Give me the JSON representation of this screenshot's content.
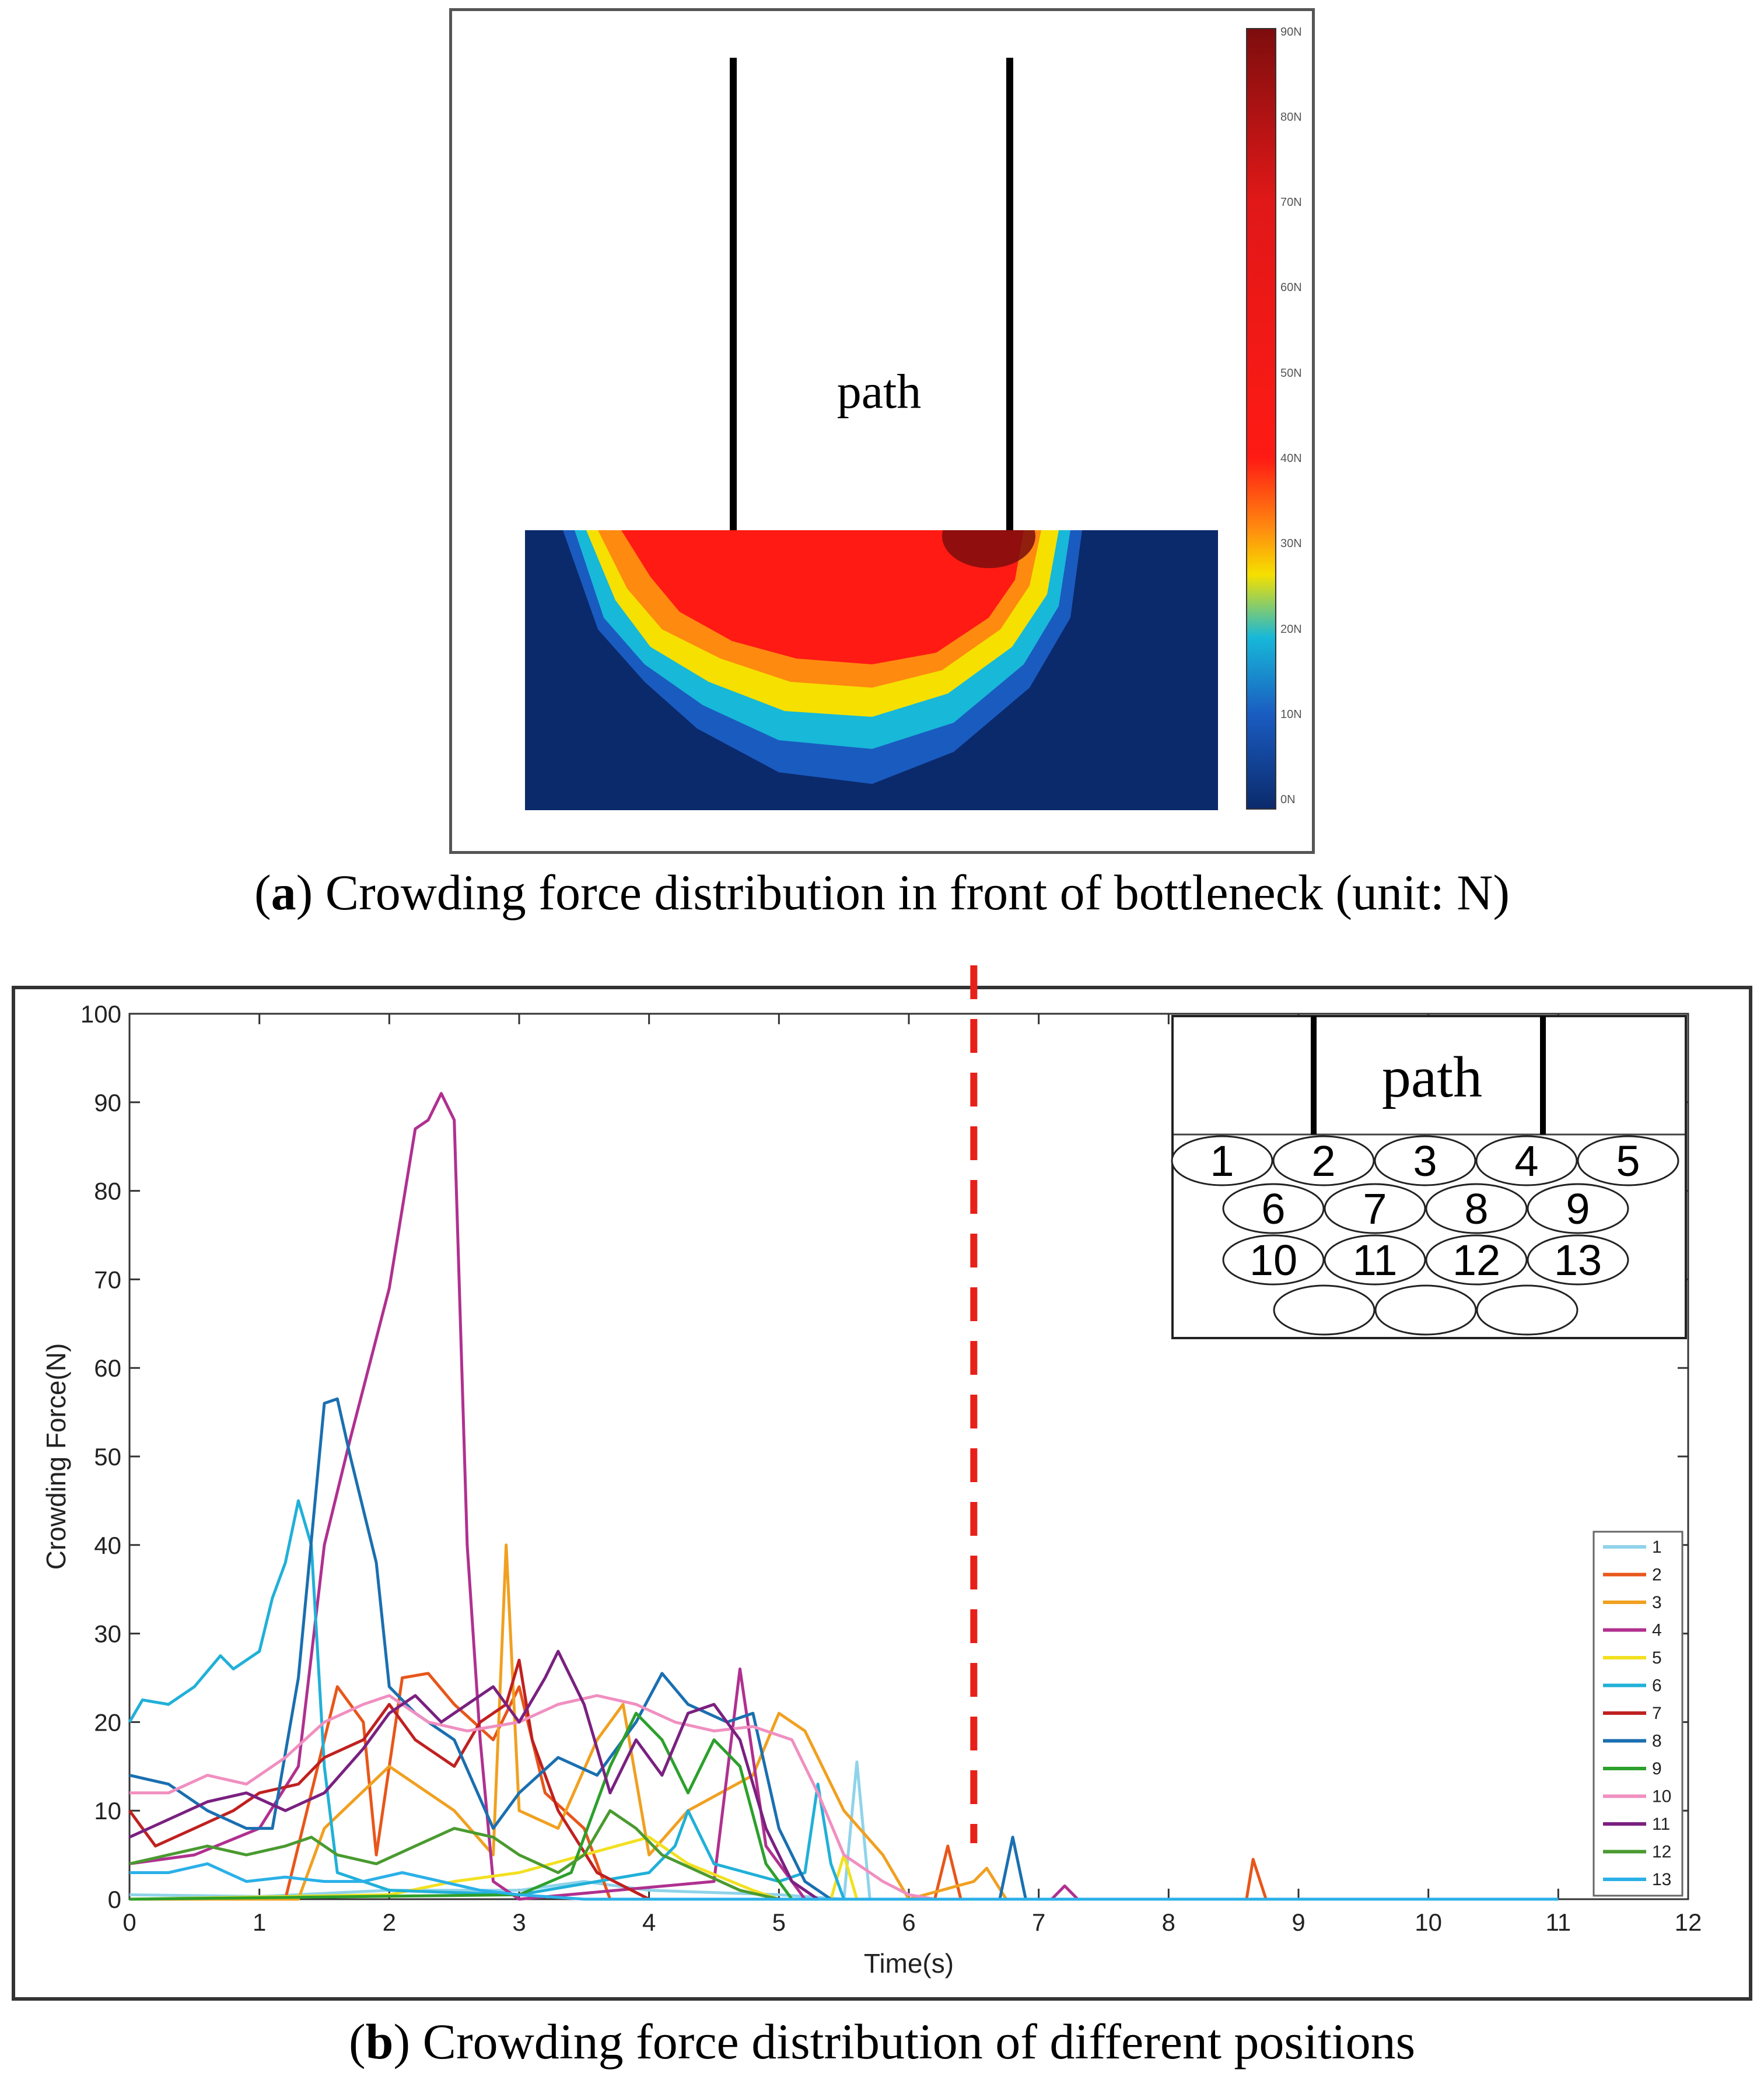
{
  "panel_a": {
    "path_label": "path",
    "caption_letter": "a",
    "caption_text": ") Crowding force distribution in front of bottleneck (unit: N)",
    "colorbar_ticks": [
      "90N",
      "80N",
      "70N",
      "60N",
      "50N",
      "40N",
      "30N",
      "20N",
      "10N",
      "0N"
    ],
    "colors": {
      "low": "#0b2a6b",
      "mid": "#18b8d8",
      "warm": "#f5e000",
      "high": "#ff1a14",
      "max": "#7d0d0d"
    }
  },
  "panel_b": {
    "caption_letter": "b",
    "caption_text": ") Crowding force distribution of different positions",
    "inset": {
      "path_label": "path",
      "row1": [
        "1",
        "2",
        "3",
        "4",
        "5"
      ],
      "row2": [
        "6",
        "7",
        "8",
        "9"
      ],
      "row3": [
        "10",
        "11",
        "12",
        "13"
      ]
    },
    "marker_color": "#e8201a"
  },
  "chart_data": {
    "type": "line",
    "title": "",
    "xlabel": "Time(s)",
    "ylabel": "Crowding Force(N)",
    "xlim": [
      0,
      12
    ],
    "ylim": [
      0,
      100
    ],
    "xticks": [
      0,
      1,
      2,
      3,
      4,
      5,
      6,
      7,
      8,
      9,
      10,
      11,
      12
    ],
    "yticks": [
      0,
      10,
      20,
      30,
      40,
      50,
      60,
      70,
      80,
      90,
      100
    ],
    "vertical_marker_x": 6.5,
    "legend_position": "lower-right",
    "series": [
      {
        "name": "1",
        "color": "#8fd3ea",
        "points": [
          [
            0,
            0.5
          ],
          [
            1,
            0.3
          ],
          [
            2,
            1
          ],
          [
            3,
            1
          ],
          [
            3.5,
            2
          ],
          [
            4,
            1
          ],
          [
            5,
            0.5
          ],
          [
            5.5,
            0
          ],
          [
            5.6,
            15.5
          ],
          [
            5.7,
            0
          ],
          [
            11,
            0
          ]
        ]
      },
      {
        "name": "2",
        "color": "#e8561a",
        "points": [
          [
            0,
            0
          ],
          [
            1.2,
            0
          ],
          [
            1.4,
            12
          ],
          [
            1.6,
            24
          ],
          [
            1.8,
            20
          ],
          [
            1.9,
            5
          ],
          [
            2.1,
            25
          ],
          [
            2.3,
            25.5
          ],
          [
            2.5,
            22
          ],
          [
            2.8,
            18
          ],
          [
            3,
            24
          ],
          [
            3.2,
            12
          ],
          [
            3.5,
            8
          ],
          [
            3.7,
            0
          ],
          [
            6.2,
            0
          ],
          [
            6.3,
            6
          ],
          [
            6.4,
            0
          ],
          [
            8.6,
            0
          ],
          [
            8.65,
            4.5
          ],
          [
            8.75,
            0
          ],
          [
            11,
            0
          ]
        ]
      },
      {
        "name": "3",
        "color": "#f0a020",
        "points": [
          [
            0,
            0
          ],
          [
            1.3,
            0
          ],
          [
            1.5,
            8
          ],
          [
            2,
            15
          ],
          [
            2.5,
            10
          ],
          [
            2.8,
            5
          ],
          [
            2.9,
            40
          ],
          [
            3,
            10
          ],
          [
            3.3,
            8
          ],
          [
            3.6,
            18
          ],
          [
            3.8,
            22
          ],
          [
            4,
            5
          ],
          [
            4.3,
            10
          ],
          [
            4.8,
            14
          ],
          [
            5,
            21
          ],
          [
            5.2,
            19
          ],
          [
            5.5,
            10
          ],
          [
            5.8,
            5
          ],
          [
            6,
            0
          ],
          [
            6.5,
            2
          ],
          [
            6.6,
            3.5
          ],
          [
            6.75,
            0
          ],
          [
            11,
            0
          ]
        ]
      },
      {
        "name": "4",
        "color": "#b0308f",
        "points": [
          [
            0,
            4
          ],
          [
            0.5,
            5
          ],
          [
            1,
            8
          ],
          [
            1.3,
            15
          ],
          [
            1.5,
            40
          ],
          [
            1.7,
            52
          ],
          [
            2,
            69
          ],
          [
            2.2,
            87
          ],
          [
            2.3,
            88
          ],
          [
            2.4,
            91
          ],
          [
            2.5,
            88
          ],
          [
            2.6,
            40
          ],
          [
            2.7,
            18
          ],
          [
            2.8,
            2
          ],
          [
            3,
            0
          ],
          [
            4.5,
            2
          ],
          [
            4.7,
            26
          ],
          [
            4.9,
            6
          ],
          [
            5.2,
            0
          ],
          [
            7.1,
            0
          ],
          [
            7.2,
            1.5
          ],
          [
            7.3,
            0
          ],
          [
            11,
            0
          ]
        ]
      },
      {
        "name": "5",
        "color": "#f2e020",
        "points": [
          [
            0,
            0
          ],
          [
            2,
            0.5
          ],
          [
            2.5,
            2
          ],
          [
            3,
            3
          ],
          [
            3.5,
            5
          ],
          [
            4,
            7
          ],
          [
            4.3,
            4
          ],
          [
            4.8,
            1
          ],
          [
            5,
            0
          ],
          [
            5.4,
            0
          ],
          [
            5.5,
            5
          ],
          [
            5.6,
            0
          ],
          [
            11,
            0
          ]
        ]
      },
      {
        "name": "6",
        "color": "#20b0d8",
        "points": [
          [
            0,
            20
          ],
          [
            0.1,
            22.5
          ],
          [
            0.3,
            22
          ],
          [
            0.5,
            24
          ],
          [
            0.7,
            27.5
          ],
          [
            0.8,
            26
          ],
          [
            1,
            28
          ],
          [
            1.1,
            34
          ],
          [
            1.2,
            38
          ],
          [
            1.3,
            45
          ],
          [
            1.4,
            40
          ],
          [
            1.5,
            15
          ],
          [
            1.6,
            3
          ],
          [
            2,
            1
          ],
          [
            3,
            0.5
          ],
          [
            4,
            3
          ],
          [
            4.2,
            6
          ],
          [
            4.3,
            10
          ],
          [
            4.5,
            4
          ],
          [
            5,
            2
          ],
          [
            5.2,
            3
          ],
          [
            5.3,
            13
          ],
          [
            5.4,
            4
          ],
          [
            5.5,
            0
          ],
          [
            11,
            0
          ]
        ]
      },
      {
        "name": "7",
        "color": "#c02020",
        "points": [
          [
            0,
            10
          ],
          [
            0.2,
            6
          ],
          [
            0.5,
            8
          ],
          [
            0.8,
            10
          ],
          [
            1,
            12
          ],
          [
            1.3,
            13
          ],
          [
            1.5,
            16
          ],
          [
            1.8,
            18
          ],
          [
            2,
            22
          ],
          [
            2.2,
            18
          ],
          [
            2.5,
            15
          ],
          [
            2.7,
            20
          ],
          [
            2.9,
            22
          ],
          [
            3,
            27
          ],
          [
            3.1,
            18
          ],
          [
            3.3,
            10
          ],
          [
            3.6,
            3
          ],
          [
            4,
            0
          ],
          [
            11,
            0
          ]
        ]
      },
      {
        "name": "8",
        "color": "#1a6fb0",
        "points": [
          [
            0,
            14
          ],
          [
            0.3,
            13
          ],
          [
            0.6,
            10
          ],
          [
            0.9,
            8
          ],
          [
            1.1,
            8
          ],
          [
            1.3,
            25
          ],
          [
            1.5,
            56
          ],
          [
            1.6,
            56.5
          ],
          [
            1.7,
            50
          ],
          [
            1.9,
            38
          ],
          [
            2,
            24
          ],
          [
            2.2,
            21
          ],
          [
            2.5,
            18
          ],
          [
            2.8,
            8
          ],
          [
            3,
            12
          ],
          [
            3.3,
            16
          ],
          [
            3.6,
            14
          ],
          [
            3.9,
            20
          ],
          [
            4.1,
            25.5
          ],
          [
            4.3,
            22
          ],
          [
            4.6,
            20
          ],
          [
            4.8,
            21
          ],
          [
            5,
            8
          ],
          [
            5.2,
            2
          ],
          [
            5.4,
            0
          ],
          [
            6.7,
            0
          ],
          [
            6.8,
            7
          ],
          [
            6.9,
            0
          ],
          [
            11,
            0
          ]
        ]
      },
      {
        "name": "9",
        "color": "#2ca02c",
        "points": [
          [
            0,
            0
          ],
          [
            3,
            0.5
          ],
          [
            3.4,
            3
          ],
          [
            3.7,
            15
          ],
          [
            3.9,
            21
          ],
          [
            4.1,
            18
          ],
          [
            4.3,
            12
          ],
          [
            4.5,
            18
          ],
          [
            4.7,
            15
          ],
          [
            4.9,
            4
          ],
          [
            5.1,
            0
          ],
          [
            11,
            0
          ]
        ]
      },
      {
        "name": "10",
        "color": "#f08fc0",
        "points": [
          [
            0,
            12
          ],
          [
            0.3,
            12
          ],
          [
            0.6,
            14
          ],
          [
            0.9,
            13
          ],
          [
            1.2,
            16
          ],
          [
            1.5,
            20
          ],
          [
            1.8,
            22
          ],
          [
            2,
            23
          ],
          [
            2.3,
            20
          ],
          [
            2.6,
            19
          ],
          [
            3,
            20
          ],
          [
            3.3,
            22
          ],
          [
            3.6,
            23
          ],
          [
            3.9,
            22
          ],
          [
            4.2,
            20
          ],
          [
            4.5,
            19
          ],
          [
            4.8,
            19.5
          ],
          [
            5.1,
            18
          ],
          [
            5.3,
            12
          ],
          [
            5.5,
            5
          ],
          [
            5.8,
            2
          ],
          [
            6,
            0.5
          ],
          [
            6.2,
            0
          ],
          [
            11,
            0
          ]
        ]
      },
      {
        "name": "11",
        "color": "#7a2080",
        "points": [
          [
            0,
            7
          ],
          [
            0.3,
            9
          ],
          [
            0.6,
            11
          ],
          [
            0.9,
            12
          ],
          [
            1.2,
            10
          ],
          [
            1.5,
            12
          ],
          [
            1.8,
            17
          ],
          [
            2,
            21
          ],
          [
            2.2,
            23
          ],
          [
            2.4,
            20
          ],
          [
            2.6,
            22
          ],
          [
            2.8,
            24
          ],
          [
            3,
            20
          ],
          [
            3.2,
            25
          ],
          [
            3.3,
            28
          ],
          [
            3.5,
            22
          ],
          [
            3.7,
            12
          ],
          [
            3.9,
            18
          ],
          [
            4.1,
            14
          ],
          [
            4.3,
            21
          ],
          [
            4.5,
            22
          ],
          [
            4.7,
            18
          ],
          [
            4.9,
            8
          ],
          [
            5.1,
            2
          ],
          [
            5.3,
            0
          ],
          [
            11,
            0
          ]
        ]
      },
      {
        "name": "12",
        "color": "#4a9a30",
        "points": [
          [
            0,
            4
          ],
          [
            0.3,
            5
          ],
          [
            0.6,
            6
          ],
          [
            0.9,
            5
          ],
          [
            1.2,
            6
          ],
          [
            1.4,
            7
          ],
          [
            1.6,
            5
          ],
          [
            1.9,
            4
          ],
          [
            2.2,
            6
          ],
          [
            2.5,
            8
          ],
          [
            2.8,
            7
          ],
          [
            3,
            5
          ],
          [
            3.3,
            3
          ],
          [
            3.5,
            5
          ],
          [
            3.7,
            10
          ],
          [
            3.9,
            8
          ],
          [
            4.1,
            5
          ],
          [
            4.4,
            3
          ],
          [
            4.7,
            1
          ],
          [
            5,
            0
          ],
          [
            11,
            0
          ]
        ]
      },
      {
        "name": "13",
        "color": "#2bb0e8",
        "points": [
          [
            0,
            3
          ],
          [
            0.3,
            3
          ],
          [
            0.6,
            4
          ],
          [
            0.9,
            2
          ],
          [
            1.2,
            2.5
          ],
          [
            1.5,
            2
          ],
          [
            1.8,
            2
          ],
          [
            2.1,
            3
          ],
          [
            2.4,
            2
          ],
          [
            2.7,
            1
          ],
          [
            3,
            0.5
          ],
          [
            3.5,
            0
          ],
          [
            11,
            0
          ]
        ]
      }
    ]
  }
}
